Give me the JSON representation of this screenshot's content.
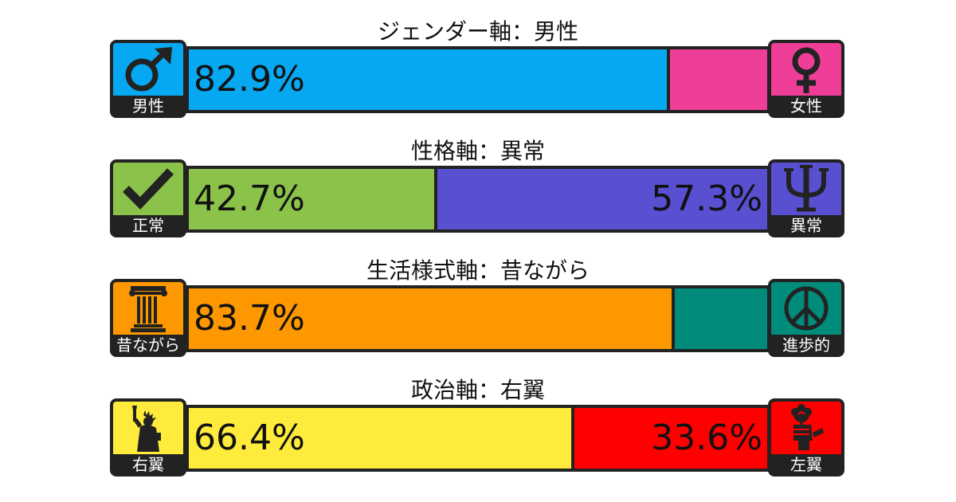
{
  "axes": [
    {
      "title": "ジェンダー軸：男性",
      "left": {
        "label": "男性",
        "icon": "male-symbol-icon",
        "color": "#06a8f1"
      },
      "right": {
        "label": "女性",
        "icon": "female-symbol-icon",
        "color": "#ef3e97"
      },
      "left_percent": 82.9,
      "left_text": "82.9%",
      "right_text": ""
    },
    {
      "title": "性格軸：異常",
      "left": {
        "label": "正常",
        "icon": "checkmark-icon",
        "color": "#8bc24a"
      },
      "right": {
        "label": "異常",
        "icon": "psi-icon",
        "color": "#584fd1"
      },
      "left_percent": 42.7,
      "left_text": "42.7%",
      "right_text": "57.3%"
    },
    {
      "title": "生活様式軸：昔ながら",
      "left": {
        "label": "昔ながら",
        "icon": "column-pillar-icon",
        "color": "#fd9800"
      },
      "right": {
        "label": "進歩的",
        "icon": "peace-sign-icon",
        "color": "#008b7a"
      },
      "left_percent": 83.7,
      "left_text": "83.7%",
      "right_text": ""
    },
    {
      "title": "政治軸：右翼",
      "left": {
        "label": "右翼",
        "icon": "statue-of-liberty-icon",
        "color": "#ffeb3b"
      },
      "right": {
        "label": "左翼",
        "icon": "rose-in-fist-icon",
        "color": "#fe0000"
      },
      "left_percent": 66.4,
      "left_text": "66.4%",
      "right_text": "33.6%"
    }
  ]
}
